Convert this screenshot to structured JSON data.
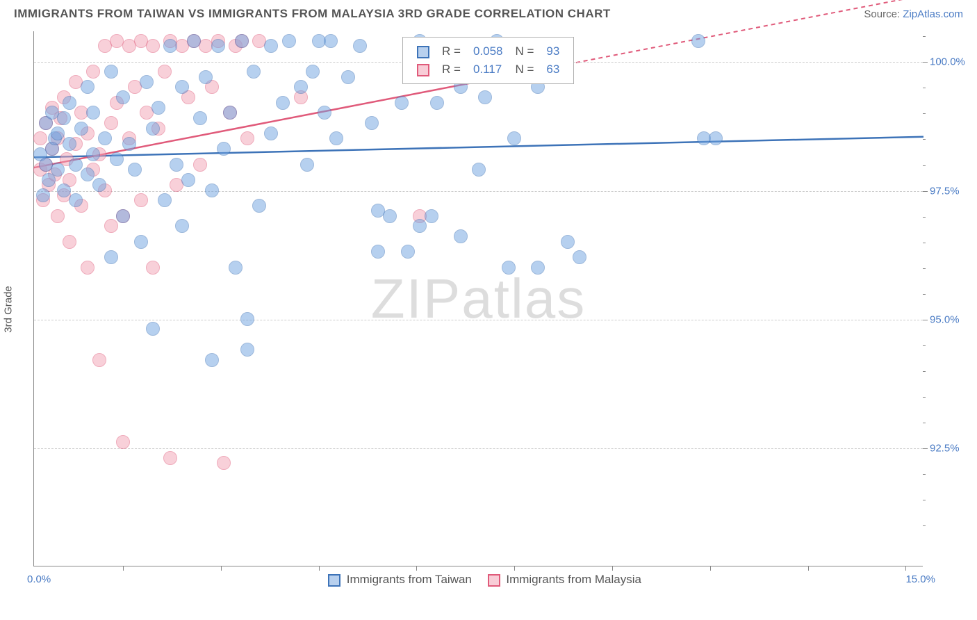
{
  "title": "IMMIGRANTS FROM TAIWAN VS IMMIGRANTS FROM MALAYSIA 3RD GRADE CORRELATION CHART",
  "source_prefix": "Source: ",
  "source_link": "ZipAtlas.com",
  "ylabel": "3rd Grade",
  "watermark": "ZIPatlas",
  "chart": {
    "type": "scatter",
    "xlim": [
      0.0,
      15.0
    ],
    "ylim": [
      90.2,
      100.6
    ],
    "x_tick_labels": {
      "min": "0.0%",
      "max": "15.0%"
    },
    "y_ticks": [
      92.5,
      95.0,
      97.5,
      100.0
    ],
    "y_tick_labels": [
      "92.5%",
      "95.0%",
      "97.5%",
      "100.0%"
    ],
    "x_ticks_positions": [
      1.5,
      3.15,
      4.8,
      6.45,
      8.1,
      9.75,
      11.4,
      13.05,
      14.7
    ],
    "y_minor_ticks": [
      91.0,
      91.5,
      92.0,
      93.0,
      93.5,
      94.0,
      94.5,
      95.5,
      96.0,
      96.5,
      97.0,
      98.0,
      98.5,
      99.0,
      99.5,
      100.5
    ],
    "grid_color": "#cccccc",
    "background": "#ffffff",
    "marker_radius": 10,
    "marker_opacity": 0.5,
    "series": [
      {
        "name": "Immigrants from Taiwan",
        "color": "#6fa3e0",
        "stroke": "#3d73b8",
        "R": "0.058",
        "N": "93",
        "trend": {
          "y_at_xmin": 98.15,
          "y_at_xmax": 98.55,
          "solid_until_x": 15.0
        },
        "points": [
          [
            0.1,
            98.2
          ],
          [
            0.15,
            97.4
          ],
          [
            0.2,
            98.8
          ],
          [
            0.2,
            98.0
          ],
          [
            0.25,
            97.7
          ],
          [
            0.3,
            98.3
          ],
          [
            0.3,
            99.0
          ],
          [
            0.35,
            98.5
          ],
          [
            0.4,
            97.9
          ],
          [
            0.4,
            98.6
          ],
          [
            0.5,
            98.9
          ],
          [
            0.5,
            97.5
          ],
          [
            0.6,
            98.4
          ],
          [
            0.6,
            99.2
          ],
          [
            0.7,
            98.0
          ],
          [
            0.7,
            97.3
          ],
          [
            0.8,
            98.7
          ],
          [
            0.9,
            99.5
          ],
          [
            0.9,
            97.8
          ],
          [
            1.0,
            98.2
          ],
          [
            1.0,
            99.0
          ],
          [
            1.1,
            97.6
          ],
          [
            1.2,
            98.5
          ],
          [
            1.3,
            99.8
          ],
          [
            1.3,
            96.2
          ],
          [
            1.4,
            98.1
          ],
          [
            1.5,
            97.0
          ],
          [
            1.5,
            99.3
          ],
          [
            1.6,
            98.4
          ],
          [
            1.7,
            97.9
          ],
          [
            1.8,
            96.5
          ],
          [
            1.9,
            99.6
          ],
          [
            2.0,
            98.7
          ],
          [
            2.0,
            94.8
          ],
          [
            2.1,
            99.1
          ],
          [
            2.2,
            97.3
          ],
          [
            2.3,
            100.3
          ],
          [
            2.4,
            98.0
          ],
          [
            2.5,
            99.5
          ],
          [
            2.5,
            96.8
          ],
          [
            2.6,
            97.7
          ],
          [
            2.7,
            100.4
          ],
          [
            2.8,
            98.9
          ],
          [
            2.9,
            99.7
          ],
          [
            3.0,
            97.5
          ],
          [
            3.0,
            94.2
          ],
          [
            3.1,
            100.3
          ],
          [
            3.2,
            98.3
          ],
          [
            3.3,
            99.0
          ],
          [
            3.4,
            96.0
          ],
          [
            3.5,
            100.4
          ],
          [
            3.6,
            95.0
          ],
          [
            3.6,
            94.4
          ],
          [
            3.7,
            99.8
          ],
          [
            3.8,
            97.2
          ],
          [
            4.0,
            100.3
          ],
          [
            4.0,
            98.6
          ],
          [
            4.2,
            99.2
          ],
          [
            4.3,
            100.4
          ],
          [
            4.5,
            99.5
          ],
          [
            4.6,
            98.0
          ],
          [
            4.7,
            99.8
          ],
          [
            4.8,
            100.4
          ],
          [
            4.9,
            99.0
          ],
          [
            5.0,
            100.4
          ],
          [
            5.1,
            98.5
          ],
          [
            5.3,
            99.7
          ],
          [
            5.5,
            100.3
          ],
          [
            5.7,
            98.8
          ],
          [
            5.8,
            97.1
          ],
          [
            5.8,
            96.3
          ],
          [
            6.0,
            97.0
          ],
          [
            6.2,
            99.2
          ],
          [
            6.3,
            96.3
          ],
          [
            6.5,
            100.4
          ],
          [
            6.5,
            96.8
          ],
          [
            6.7,
            97.0
          ],
          [
            6.8,
            99.2
          ],
          [
            7.0,
            100.3
          ],
          [
            7.2,
            99.5
          ],
          [
            7.2,
            96.6
          ],
          [
            7.5,
            97.9
          ],
          [
            7.6,
            99.3
          ],
          [
            7.8,
            100.4
          ],
          [
            8.0,
            96.0
          ],
          [
            8.1,
            98.5
          ],
          [
            8.5,
            96.0
          ],
          [
            8.5,
            99.5
          ],
          [
            9.0,
            96.5
          ],
          [
            9.2,
            96.2
          ],
          [
            11.2,
            100.4
          ],
          [
            11.3,
            98.5
          ],
          [
            11.5,
            98.5
          ]
        ]
      },
      {
        "name": "Immigrants from Malaysia",
        "color": "#f2a3b5",
        "stroke": "#e05a7a",
        "R": "0.117",
        "N": "63",
        "trend": {
          "y_at_xmin": 97.95,
          "y_at_xmax": 101.3,
          "solid_until_x": 8.0
        },
        "points": [
          [
            0.1,
            97.9
          ],
          [
            0.1,
            98.5
          ],
          [
            0.15,
            97.3
          ],
          [
            0.2,
            98.0
          ],
          [
            0.2,
            98.8
          ],
          [
            0.25,
            97.6
          ],
          [
            0.3,
            98.3
          ],
          [
            0.3,
            99.1
          ],
          [
            0.35,
            97.8
          ],
          [
            0.4,
            98.5
          ],
          [
            0.4,
            97.0
          ],
          [
            0.45,
            98.9
          ],
          [
            0.5,
            97.4
          ],
          [
            0.5,
            99.3
          ],
          [
            0.55,
            98.1
          ],
          [
            0.6,
            97.7
          ],
          [
            0.6,
            96.5
          ],
          [
            0.7,
            98.4
          ],
          [
            0.7,
            99.6
          ],
          [
            0.8,
            97.2
          ],
          [
            0.8,
            99.0
          ],
          [
            0.9,
            98.6
          ],
          [
            0.9,
            96.0
          ],
          [
            1.0,
            97.9
          ],
          [
            1.0,
            99.8
          ],
          [
            1.1,
            98.2
          ],
          [
            1.1,
            94.2
          ],
          [
            1.2,
            97.5
          ],
          [
            1.2,
            100.3
          ],
          [
            1.3,
            98.8
          ],
          [
            1.3,
            96.8
          ],
          [
            1.4,
            99.2
          ],
          [
            1.4,
            100.4
          ],
          [
            1.5,
            97.0
          ],
          [
            1.5,
            92.6
          ],
          [
            1.6,
            98.5
          ],
          [
            1.6,
            100.3
          ],
          [
            1.7,
            99.5
          ],
          [
            1.8,
            97.3
          ],
          [
            1.8,
            100.4
          ],
          [
            1.9,
            99.0
          ],
          [
            2.0,
            100.3
          ],
          [
            2.0,
            96.0
          ],
          [
            2.1,
            98.7
          ],
          [
            2.2,
            99.8
          ],
          [
            2.3,
            100.4
          ],
          [
            2.3,
            92.3
          ],
          [
            2.4,
            97.6
          ],
          [
            2.5,
            100.3
          ],
          [
            2.6,
            99.3
          ],
          [
            2.7,
            100.4
          ],
          [
            2.8,
            98.0
          ],
          [
            2.9,
            100.3
          ],
          [
            3.0,
            99.5
          ],
          [
            3.1,
            100.4
          ],
          [
            3.2,
            92.2
          ],
          [
            3.3,
            99.0
          ],
          [
            3.4,
            100.3
          ],
          [
            3.5,
            100.4
          ],
          [
            3.6,
            98.5
          ],
          [
            3.8,
            100.4
          ],
          [
            4.5,
            99.3
          ],
          [
            6.5,
            97.0
          ]
        ]
      }
    ],
    "bottom_legend": [
      "Immigrants from Taiwan",
      "Immigrants from Malaysia"
    ],
    "legend_box": {
      "rows": [
        {
          "swatch_fill": "#b8d0ee",
          "swatch_border": "#3d73b8",
          "r_label": "R =",
          "r_val": "0.058",
          "n_label": "N =",
          "n_val": "93"
        },
        {
          "swatch_fill": "#f8cdd7",
          "swatch_border": "#e05a7a",
          "r_label": "R =",
          "r_val": "0.117",
          "n_label": "N =",
          "n_val": "63"
        }
      ]
    }
  }
}
